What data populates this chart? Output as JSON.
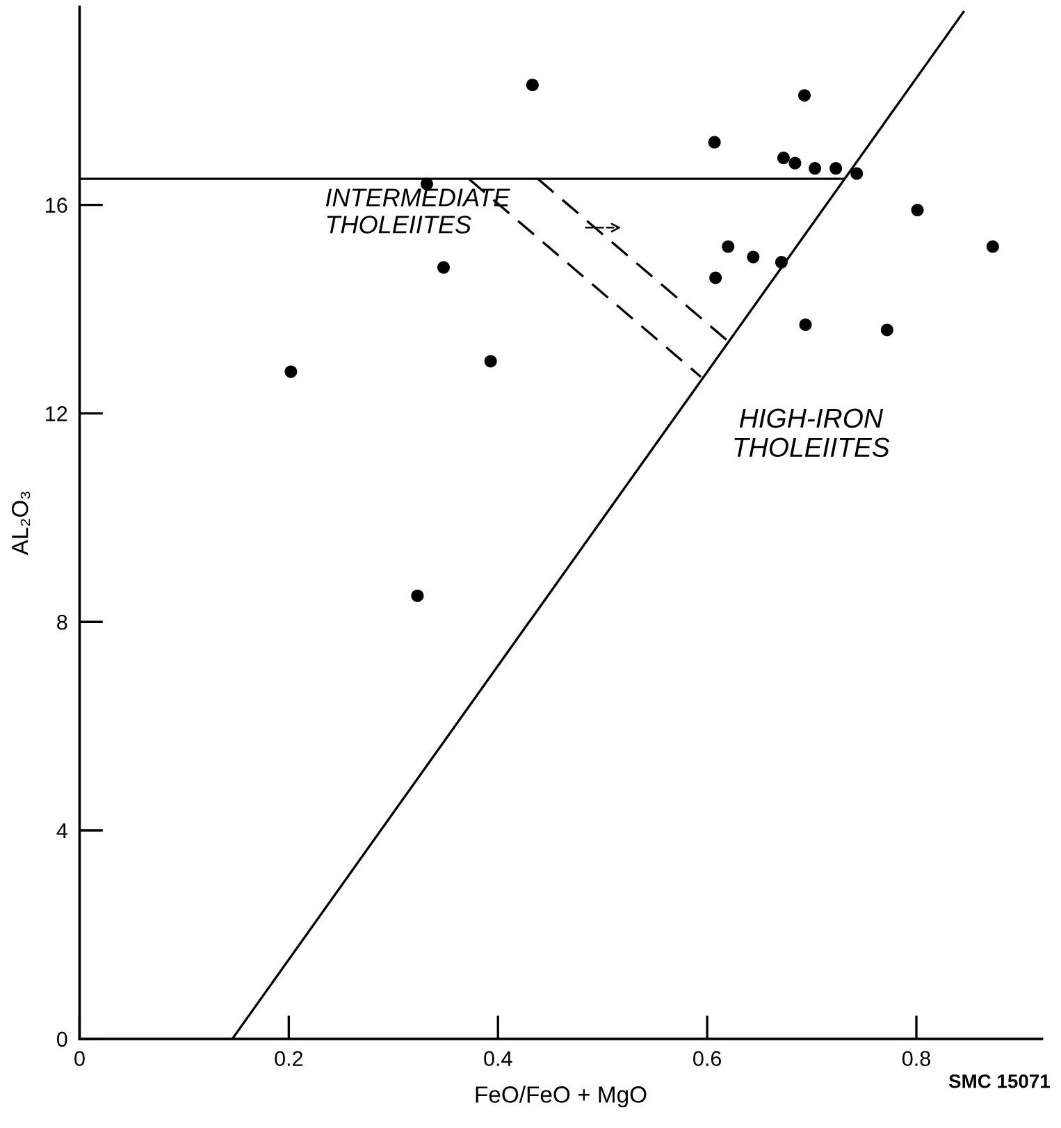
{
  "chart_data": {
    "type": "scatter",
    "xlabel": "FeO/FeO + MgO",
    "ylabel": "AL₂O₃",
    "xlim": [
      0,
      0.92
    ],
    "ylim": [
      0,
      19.8
    ],
    "xticks": [
      0,
      0.2,
      0.4,
      0.6,
      0.8
    ],
    "yticks": [
      0,
      4,
      8,
      12,
      16
    ],
    "grid": false,
    "legend": false,
    "marker": "circle",
    "series": [
      {
        "color": "#000000",
        "x": [
          0.433,
          0.332,
          0.348,
          0.202,
          0.393,
          0.323,
          0.693,
          0.607,
          0.673,
          0.684,
          0.703,
          0.723,
          0.743,
          0.801,
          0.873,
          0.62,
          0.644,
          0.671,
          0.608,
          0.694,
          0.772
        ],
        "values": [
          18.3,
          16.4,
          14.8,
          12.8,
          13.0,
          8.5,
          18.1,
          17.2,
          16.9,
          16.8,
          16.7,
          16.7,
          16.6,
          15.9,
          15.2,
          15.2,
          15.0,
          14.9,
          14.6,
          13.7,
          13.6
        ]
      },
      {
        "type": "line",
        "color": "#000000",
        "marker": "none",
        "line_style": "solid",
        "x": [
          0,
          0.731
        ],
        "values": [
          16.5,
          16.5
        ]
      },
      {
        "type": "line",
        "color": "#000000",
        "marker": "none",
        "line_style": "solid",
        "x": [
          0.146,
          0.845
        ],
        "values": [
          0,
          19.7
        ]
      },
      {
        "type": "line",
        "color": "#000000",
        "marker": "none",
        "line_style": "dashed",
        "x": [
          0.372,
          0.594
        ],
        "values": [
          16.5,
          12.7
        ]
      },
      {
        "type": "line",
        "color": "#000000",
        "marker": "none",
        "line_style": "dashed",
        "x": [
          0.438,
          0.619
        ],
        "values": [
          16.5,
          13.4
        ]
      }
    ],
    "annotations": [
      "INTERMEDIATE\nTHOLEIITES",
      "HIGH-IRON\nTHOLEIITES",
      "SMC 15071"
    ]
  }
}
